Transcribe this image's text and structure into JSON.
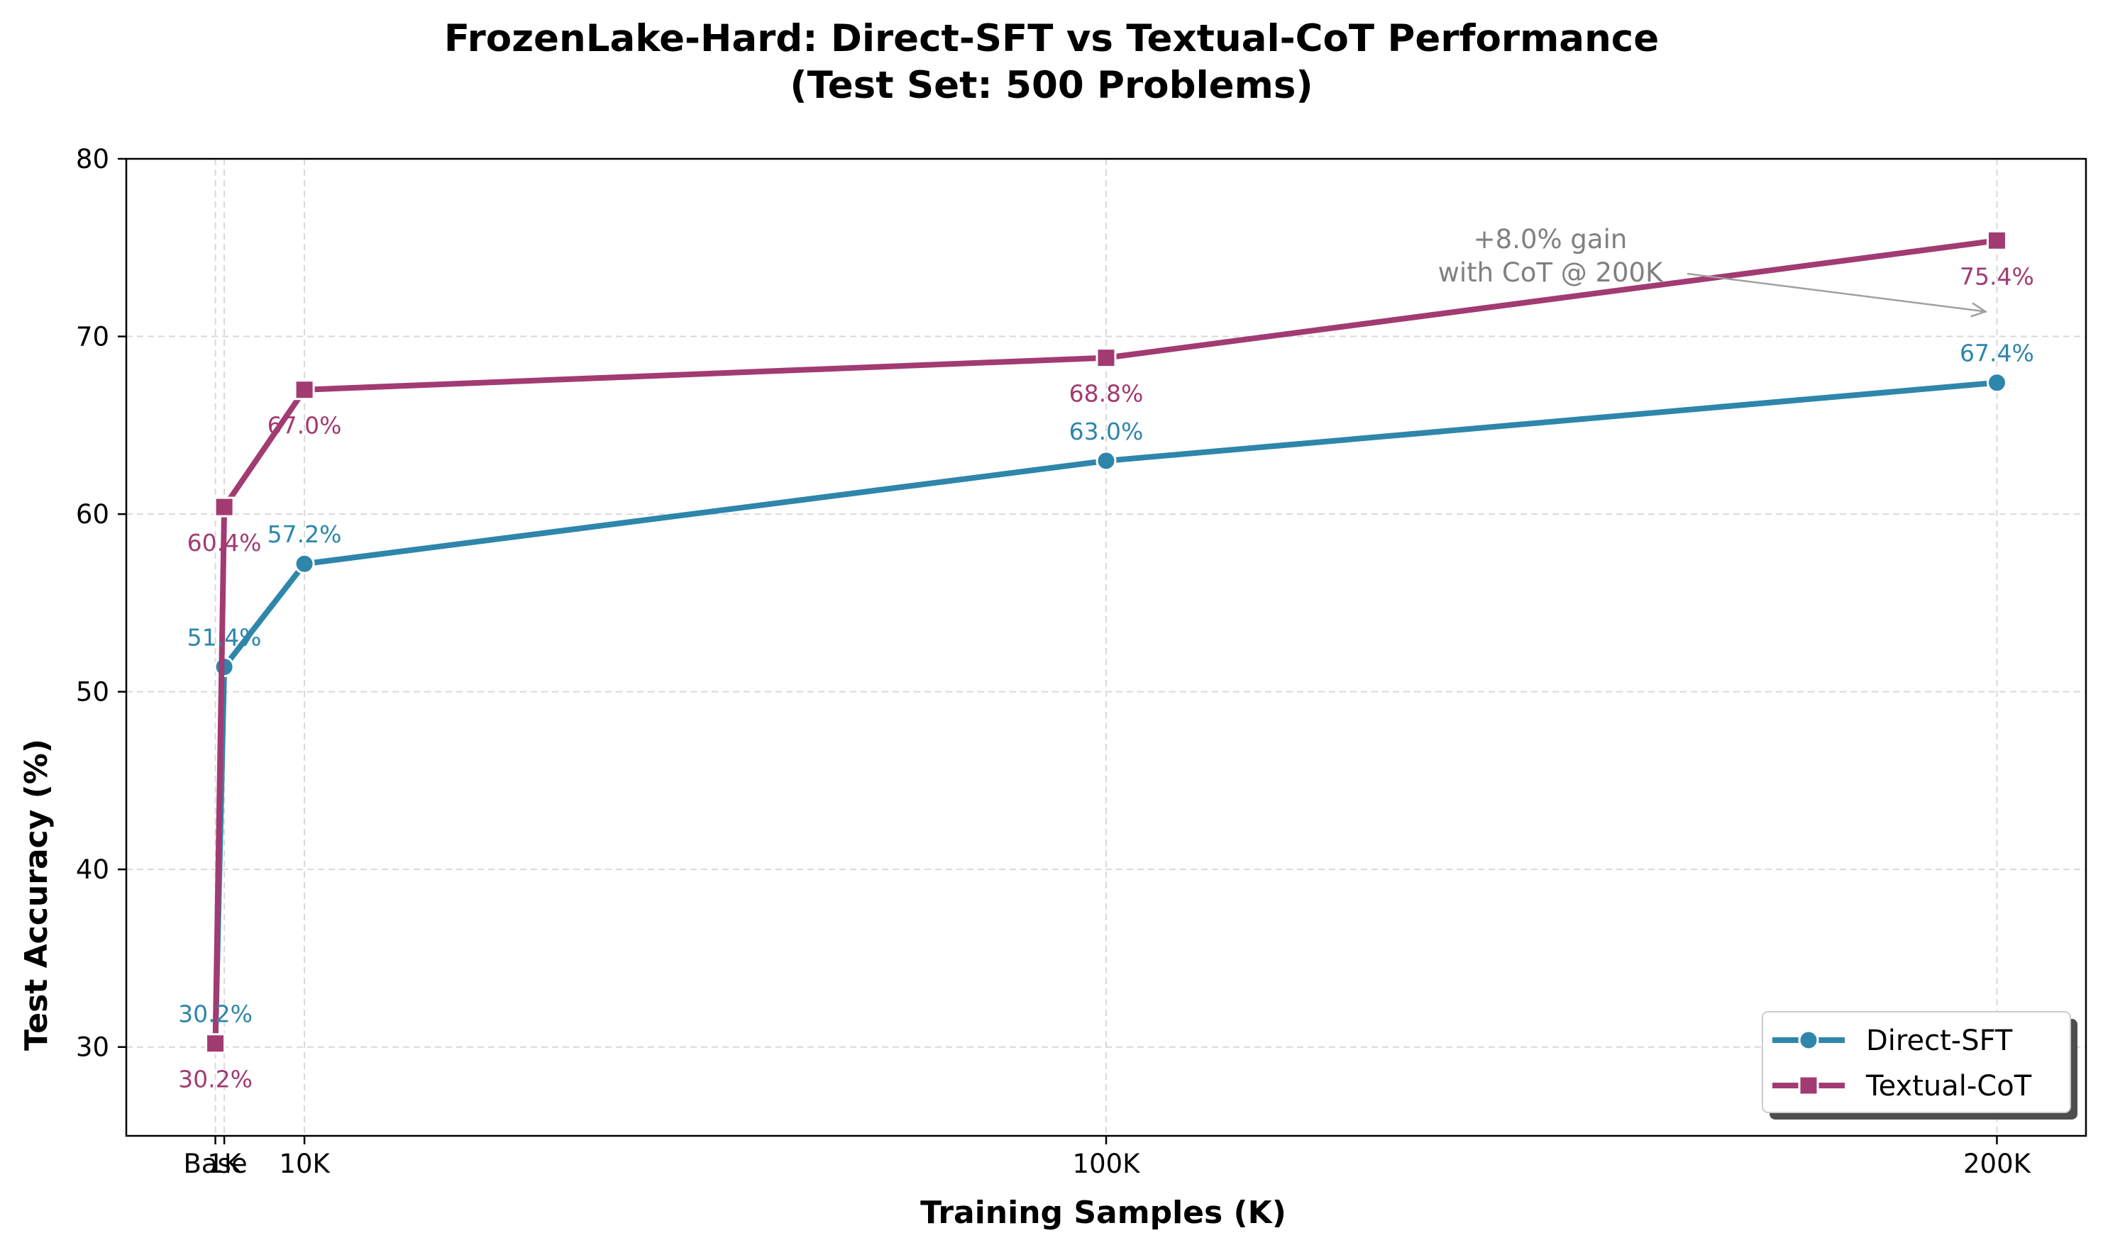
{
  "chart_data": {
    "type": "line",
    "title": "FrozenLake-Hard: Direct-SFT vs Textual-CoT Performance",
    "subtitle": "(Test Set: 500 Problems)",
    "xlabel": "Training Samples (K)",
    "ylabel": "Test Accuracy (%)",
    "x": [
      0,
      1,
      10,
      100,
      200
    ],
    "xtick_labels": [
      "Base",
      "1K",
      "10K",
      "100K",
      "200K"
    ],
    "xlim": [
      -10,
      210
    ],
    "ylim": [
      25,
      80
    ],
    "yticks": [
      30,
      40,
      50,
      60,
      70,
      80
    ],
    "grid": true,
    "legend_position": "lower right",
    "series": [
      {
        "name": "Direct-SFT",
        "color": "#2e86ab",
        "marker": "circle",
        "values": [
          30.2,
          51.4,
          57.2,
          63.0,
          67.4
        ],
        "labels": [
          "30.2%",
          "51.4%",
          "57.2%",
          "63.0%",
          "67.4%"
        ]
      },
      {
        "name": "Textual-CoT",
        "color": "#a23b72",
        "marker": "square",
        "values": [
          30.2,
          60.4,
          67.0,
          68.8,
          75.4
        ],
        "labels": [
          "30.2%",
          "60.4%",
          "67.0%",
          "68.8%",
          "75.4%"
        ]
      }
    ],
    "annotation": {
      "line1": "+8.0% gain",
      "line2": "with CoT @ 200K",
      "target_x": 200,
      "target_y": 71.4
    }
  }
}
